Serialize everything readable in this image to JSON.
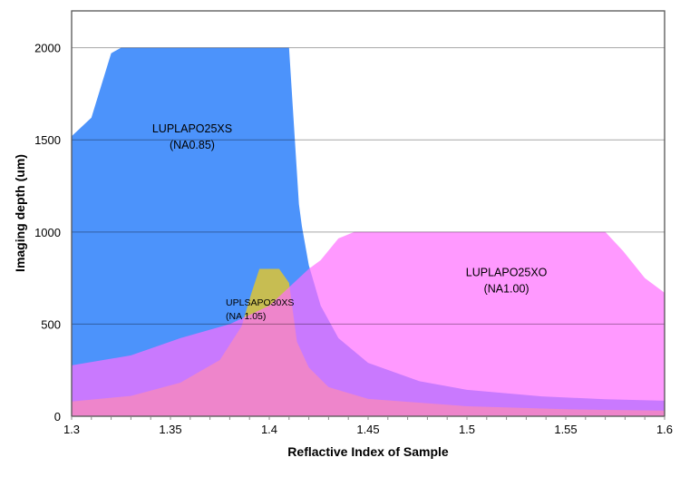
{
  "chart_data": {
    "type": "area",
    "title": "",
    "xlabel": "Reflactive Index of Sample",
    "ylabel": "Imaging depth (um)",
    "xlim": [
      1.3,
      1.6
    ],
    "ylim": [
      0,
      2200
    ],
    "x_ticks": [
      "1.3",
      "1.35",
      "1.4",
      "1.45",
      "1.5",
      "1.55",
      "1.6"
    ],
    "x_tick_values": [
      1.3,
      1.35,
      1.4,
      1.45,
      1.5,
      1.55,
      1.6
    ],
    "x_minor_step": 0.01,
    "y_ticks": [
      "0",
      "500",
      "1000",
      "1500",
      "2000"
    ],
    "y_tick_values": [
      0,
      500,
      1000,
      1500,
      2000
    ],
    "grid": true,
    "series": [
      {
        "name": "LUPLAPO25XS",
        "color": "#4c93fb",
        "opacity": 1,
        "points": [
          [
            1.3,
            1520
          ],
          [
            1.31,
            1620
          ],
          [
            1.32,
            1970
          ],
          [
            1.325,
            2000
          ],
          [
            1.41,
            2000
          ],
          [
            1.415,
            1150
          ],
          [
            1.4165,
            1030
          ],
          [
            1.42,
            820
          ],
          [
            1.426,
            600
          ],
          [
            1.435,
            424
          ],
          [
            1.45,
            290
          ],
          [
            1.476,
            190
          ],
          [
            1.5,
            143
          ],
          [
            1.538,
            108
          ],
          [
            1.57,
            92
          ],
          [
            1.6,
            84
          ]
        ]
      },
      {
        "name": "UPLSAPO30XS",
        "color": "#e6c828",
        "opacity": 0.8,
        "points": [
          [
            1.3,
            80
          ],
          [
            1.33,
            110
          ],
          [
            1.355,
            182
          ],
          [
            1.375,
            305
          ],
          [
            1.386,
            488
          ],
          [
            1.391,
            670
          ],
          [
            1.395,
            800
          ],
          [
            1.405,
            800
          ],
          [
            1.41,
            724
          ],
          [
            1.414,
            404
          ],
          [
            1.42,
            265
          ],
          [
            1.43,
            158
          ],
          [
            1.45,
            94
          ],
          [
            1.5,
            54
          ],
          [
            1.55,
            38
          ],
          [
            1.6,
            30
          ]
        ]
      },
      {
        "name": "LUPLAPO25XO",
        "color": "#ff6eff",
        "opacity": 0.7,
        "points": [
          [
            1.3,
            276
          ],
          [
            1.33,
            330
          ],
          [
            1.355,
            424
          ],
          [
            1.38,
            500
          ],
          [
            1.4,
            600
          ],
          [
            1.415,
            750
          ],
          [
            1.42,
            800
          ],
          [
            1.426,
            847
          ],
          [
            1.435,
            965
          ],
          [
            1.443,
            1000
          ],
          [
            1.57,
            1000
          ],
          [
            1.579,
            897
          ],
          [
            1.59,
            750
          ],
          [
            1.6,
            670
          ]
        ]
      }
    ],
    "annotations": [
      {
        "lines": [
          "LUPLAPO25XS",
          "(NA0.85)"
        ],
        "x": 1.361,
        "y": 1540,
        "size": "normal"
      },
      {
        "lines": [
          "UPLSAPO30XS",
          "(NA 1.05)"
        ],
        "x": 1.378,
        "y": 600,
        "size": "small",
        "align": "start"
      },
      {
        "lines": [
          "LUPLAPO25XO",
          "(NA1.00)"
        ],
        "x": 1.52,
        "y": 760,
        "size": "normal"
      }
    ]
  }
}
